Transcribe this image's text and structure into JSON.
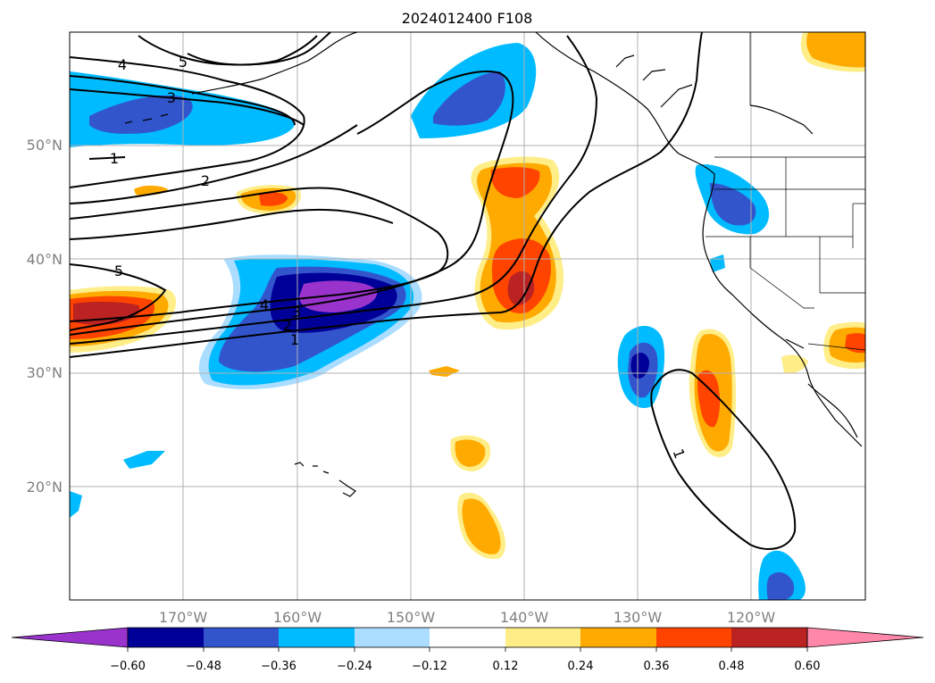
{
  "title": "2024012400 F108",
  "lat_labels": [
    "50°N",
    "40°N",
    "30°N",
    "20°N"
  ],
  "lon_labels": [
    "170°W",
    "160°W",
    "150°W",
    "140°W",
    "130°W",
    "120°W"
  ],
  "colorbar": {
    "colors": [
      "#9933cc",
      "#000099",
      "#3355cc",
      "#00bbff",
      "#aaddff",
      "#ffffff",
      "#ffee88",
      "#ffaa00",
      "#ff4400",
      "#bb2222",
      "#ff88aa"
    ],
    "tick_labels": [
      "−0.60",
      "−0.48",
      "−0.36",
      "−0.24",
      "−0.12",
      "0.12",
      "0.24",
      "0.36",
      "0.48",
      "0.60"
    ]
  },
  "contour_labels": [
    "4",
    "5",
    "3",
    "1",
    "2",
    "5",
    "4",
    "3",
    "2",
    "1",
    "1"
  ]
}
